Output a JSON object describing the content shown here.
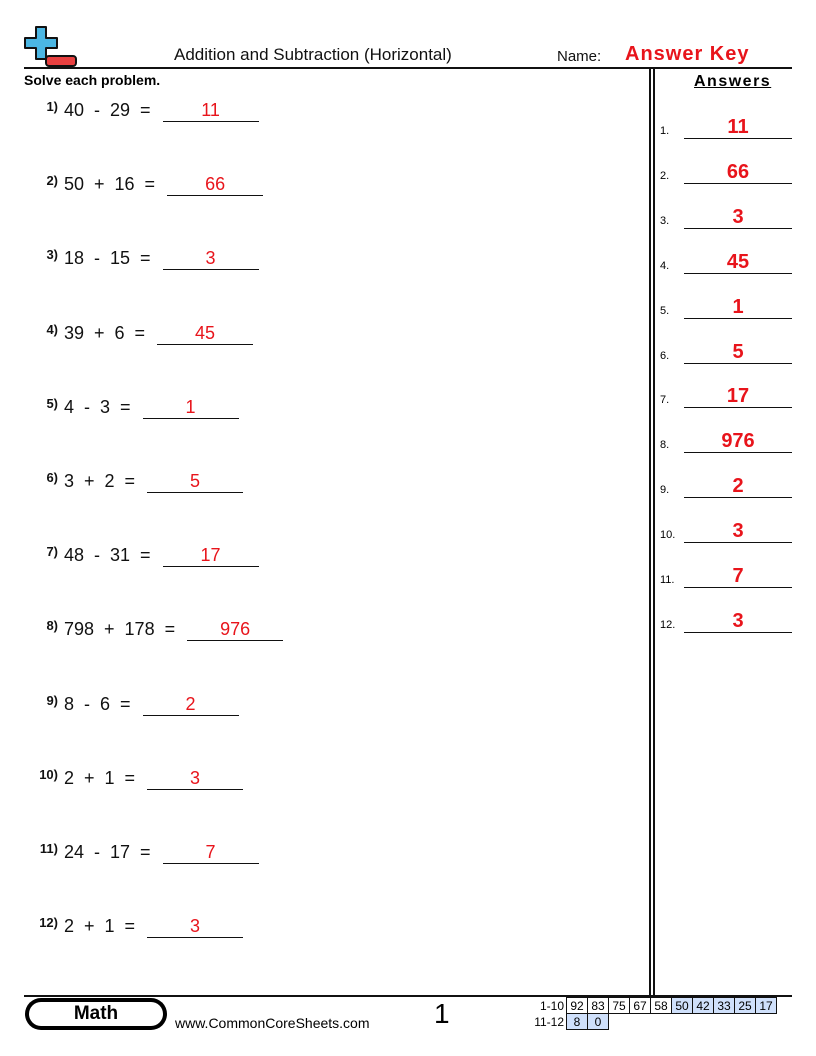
{
  "header": {
    "title": "Addition and Subtraction (Horizontal)",
    "name_label": "Name:",
    "name_value": "Answer Key",
    "logo": "plus-minus-logo-icon"
  },
  "instructions": "Solve each problem.",
  "answers_title": "Answers",
  "problems": [
    {
      "num": "1)",
      "expr": "40  -  29  =",
      "answer": "11"
    },
    {
      "num": "2)",
      "expr": "50  +  16  =",
      "answer": "66"
    },
    {
      "num": "3)",
      "expr": "18  -  15  =",
      "answer": "3"
    },
    {
      "num": "4)",
      "expr": "39  +  6  =",
      "answer": "45"
    },
    {
      "num": "5)",
      "expr": "4  -  3  =",
      "answer": "1"
    },
    {
      "num": "6)",
      "expr": "3  +  2  =",
      "answer": "5"
    },
    {
      "num": "7)",
      "expr": "48  -  31  =",
      "answer": "17"
    },
    {
      "num": "8)",
      "expr": "798  +  178  =",
      "answer": "976"
    },
    {
      "num": "9)",
      "expr": "8  -  6  =",
      "answer": "2"
    },
    {
      "num": "10)",
      "expr": "2  +  1  =",
      "answer": "3"
    },
    {
      "num": "11)",
      "expr": "24  -  17  =",
      "answer": "7"
    },
    {
      "num": "12)",
      "expr": "2  +  1  =",
      "answer": "3"
    }
  ],
  "answer_key": [
    {
      "num": "1.",
      "value": "11"
    },
    {
      "num": "2.",
      "value": "66"
    },
    {
      "num": "3.",
      "value": "3"
    },
    {
      "num": "4.",
      "value": "45"
    },
    {
      "num": "5.",
      "value": "1"
    },
    {
      "num": "6.",
      "value": "5"
    },
    {
      "num": "7.",
      "value": "17"
    },
    {
      "num": "8.",
      "value": "976"
    },
    {
      "num": "9.",
      "value": "2"
    },
    {
      "num": "10.",
      "value": "3"
    },
    {
      "num": "11.",
      "value": "7"
    },
    {
      "num": "12.",
      "value": "3"
    }
  ],
  "footer": {
    "subject": "Math",
    "url": "www.CommonCoreSheets.com",
    "page": "1",
    "score_rows": [
      {
        "label": "1-10",
        "scores": [
          "92",
          "83",
          "75",
          "67",
          "58",
          "50",
          "42",
          "33",
          "25",
          "17"
        ]
      },
      {
        "label": "11-12",
        "scores": [
          "8",
          "0"
        ]
      }
    ]
  },
  "colors": {
    "answer": "#e8141b",
    "score_highlight": "#cfe0fb"
  }
}
